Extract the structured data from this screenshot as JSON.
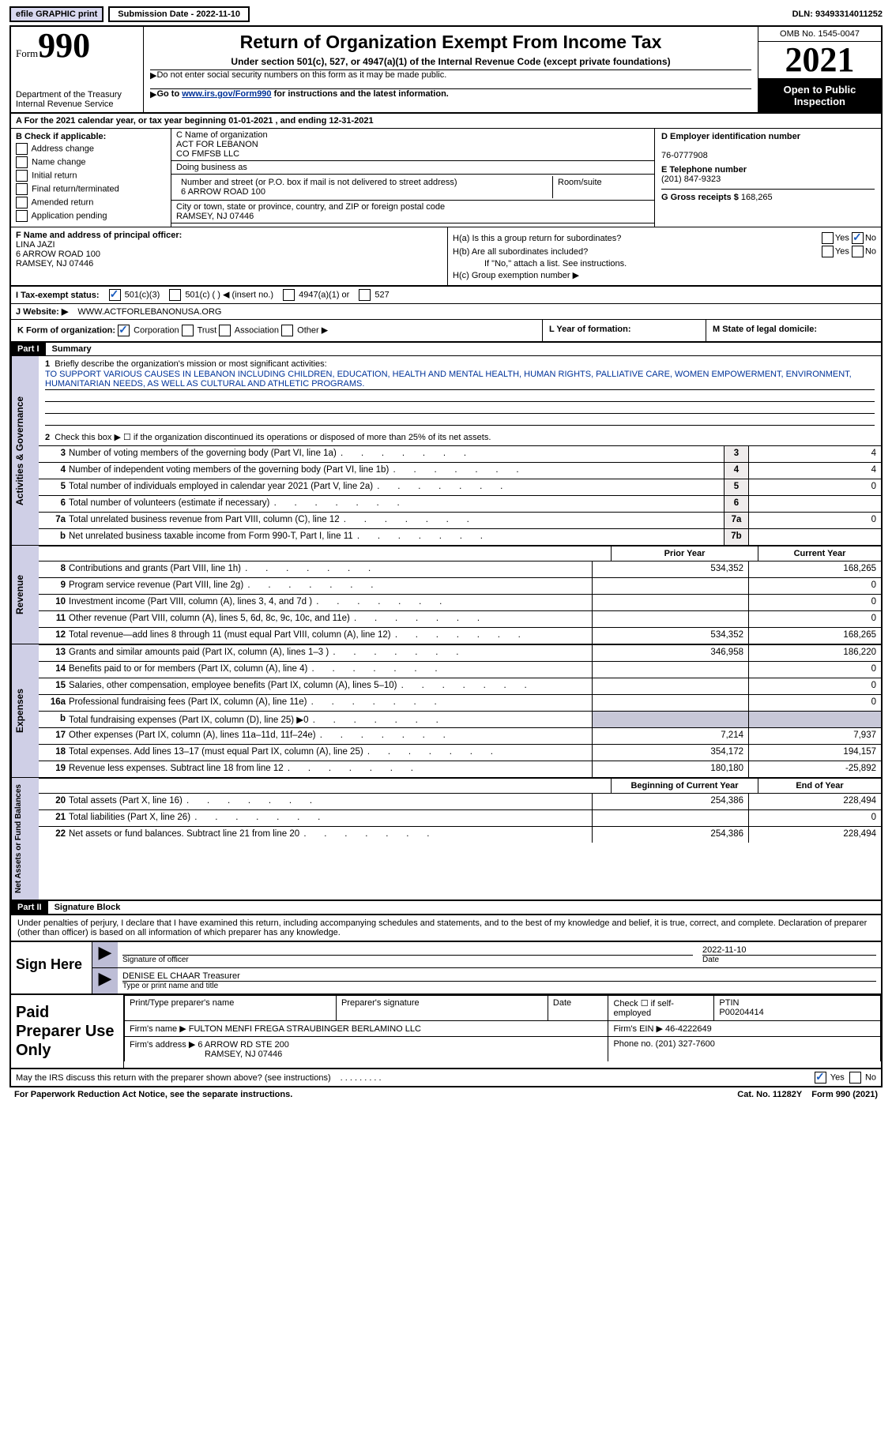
{
  "top": {
    "efile": "efile GRAPHIC print",
    "submission": "Submission Date - 2022-11-10",
    "dln": "DLN: 93493314011252"
  },
  "header": {
    "form": "Form",
    "num": "990",
    "title": "Return of Organization Exempt From Income Tax",
    "sub": "Under section 501(c), 527, or 4947(a)(1) of the Internal Revenue Code (except private foundations)",
    "line1": "Do not enter social security numbers on this form as it may be made public.",
    "line2a": "Go to ",
    "line2link": "www.irs.gov/Form990",
    "line2b": " for instructions and the latest information.",
    "dept": "Department of the Treasury Internal Revenue Service",
    "omb": "OMB No. 1545-0047",
    "year": "2021",
    "open": "Open to Public Inspection"
  },
  "rowA": "A For the 2021 calendar year, or tax year beginning 01-01-2021    , and ending 12-31-2021",
  "colB": {
    "title": "B Check if applicable:",
    "items": [
      "Address change",
      "Name change",
      "Initial return",
      "Final return/terminated",
      "Amended return",
      "Application pending"
    ]
  },
  "colC": {
    "c_lbl": "C Name of organization",
    "org1": "ACT FOR LEBANON",
    "org2": "CO FMFSB LLC",
    "dba_lbl": "Doing business as",
    "addr_lbl": "Number and street (or P.O. box if mail is not delivered to street address)",
    "room": "Room/suite",
    "addr": "6 ARROW ROAD 100",
    "city_lbl": "City or town, state or province, country, and ZIP or foreign postal code",
    "city": "RAMSEY, NJ  07446"
  },
  "colD": {
    "d_lbl": "D Employer identification number",
    "ein": "76-0777908",
    "e_lbl": "E Telephone number",
    "phone": "(201) 847-9323",
    "g_lbl": "G Gross receipts $ ",
    "gross": "168,265"
  },
  "rowF": {
    "lbl": "F Name and address of principal officer:",
    "name": "LINA JAZI",
    "addr1": "6 ARROW ROAD 100",
    "addr2": "RAMSEY, NJ  07446"
  },
  "rowH": {
    "ha": "H(a)  Is this a group return for subordinates?",
    "hb": "H(b)  Are all subordinates included?",
    "hbno": "If \"No,\" attach a list. See instructions.",
    "hc": "H(c)  Group exemption number ▶",
    "yes": "Yes",
    "no": "No"
  },
  "rowI": {
    "lbl": "I    Tax-exempt status:",
    "o1": "501(c)(3)",
    "o2": "501(c) (  ) ◀ (insert no.)",
    "o3": "4947(a)(1) or",
    "o4": "527"
  },
  "rowJ": {
    "lbl": "J   Website: ▶",
    "val": "WWW.ACTFORLEBANONUSA.ORG"
  },
  "rowK": "K Form of organization:",
  "rowK_opts": [
    "Corporation",
    "Trust",
    "Association",
    "Other ▶"
  ],
  "rowL": "L Year of formation:",
  "rowM": "M State of legal domicile:",
  "part1": {
    "bar": "Part I",
    "title": "Summary",
    "l1a": "Briefly describe the organization's mission or most significant activities:",
    "l1b": "TO SUPPORT VARIOUS CAUSES IN LEBANON INCLUDING CHILDREN, EDUCATION, HEALTH AND MENTAL HEALTH, HUMAN RIGHTS, PALLIATIVE CARE, WOMEN EMPOWERMENT, ENVIRONMENT, HUMANITARIAN NEEDS, AS WELL AS CULTURAL AND ATHLETIC PROGRAMS.",
    "l2": "Check this box ▶ ☐  if the organization discontinued its operations or disposed of more than 25% of its net assets.",
    "lines_ag": [
      {
        "n": "3",
        "t": "Number of voting members of the governing body (Part VI, line 1a)",
        "b": "3",
        "v": "4"
      },
      {
        "n": "4",
        "t": "Number of independent voting members of the governing body (Part VI, line 1b)",
        "b": "4",
        "v": "4"
      },
      {
        "n": "5",
        "t": "Total number of individuals employed in calendar year 2021 (Part V, line 2a)",
        "b": "5",
        "v": "0"
      },
      {
        "n": "6",
        "t": "Total number of volunteers (estimate if necessary)",
        "b": "6",
        "v": ""
      },
      {
        "n": "7a",
        "t": "Total unrelated business revenue from Part VIII, column (C), line 12",
        "b": "7a",
        "v": "0"
      },
      {
        "n": "b",
        "t": "Net unrelated business taxable income from Form 990-T, Part I, line 11",
        "b": "7b",
        "v": ""
      }
    ],
    "hdr_prior": "Prior Year",
    "hdr_curr": "Current Year",
    "rev": [
      {
        "n": "8",
        "t": "Contributions and grants (Part VIII, line 1h)",
        "p": "534,352",
        "c": "168,265"
      },
      {
        "n": "9",
        "t": "Program service revenue (Part VIII, line 2g)",
        "p": "",
        "c": "0"
      },
      {
        "n": "10",
        "t": "Investment income (Part VIII, column (A), lines 3, 4, and 7d )",
        "p": "",
        "c": "0"
      },
      {
        "n": "11",
        "t": "Other revenue (Part VIII, column (A), lines 5, 6d, 8c, 9c, 10c, and 11e)",
        "p": "",
        "c": "0"
      },
      {
        "n": "12",
        "t": "Total revenue—add lines 8 through 11 (must equal Part VIII, column (A), line 12)",
        "p": "534,352",
        "c": "168,265"
      }
    ],
    "exp": [
      {
        "n": "13",
        "t": "Grants and similar amounts paid (Part IX, column (A), lines 1–3 )",
        "p": "346,958",
        "c": "186,220"
      },
      {
        "n": "14",
        "t": "Benefits paid to or for members (Part IX, column (A), line 4)",
        "p": "",
        "c": "0"
      },
      {
        "n": "15",
        "t": "Salaries, other compensation, employee benefits (Part IX, column (A), lines 5–10)",
        "p": "",
        "c": "0"
      },
      {
        "n": "16a",
        "t": "Professional fundraising fees (Part IX, column (A), line 11e)",
        "p": "",
        "c": "0"
      },
      {
        "n": "b",
        "t": "Total fundraising expenses (Part IX, column (D), line 25) ▶0",
        "p": "shade",
        "c": "shade"
      },
      {
        "n": "17",
        "t": "Other expenses (Part IX, column (A), lines 11a–11d, 11f–24e)",
        "p": "7,214",
        "c": "7,937"
      },
      {
        "n": "18",
        "t": "Total expenses. Add lines 13–17 (must equal Part IX, column (A), line 25)",
        "p": "354,172",
        "c": "194,157"
      },
      {
        "n": "19",
        "t": "Revenue less expenses. Subtract line 18 from line 12",
        "p": "180,180",
        "c": "-25,892"
      }
    ],
    "hdr_beg": "Beginning of Current Year",
    "hdr_end": "End of Year",
    "bal": [
      {
        "n": "20",
        "t": "Total assets (Part X, line 16)",
        "p": "254,386",
        "c": "228,494"
      },
      {
        "n": "21",
        "t": "Total liabilities (Part X, line 26)",
        "p": "",
        "c": "0"
      },
      {
        "n": "22",
        "t": "Net assets or fund balances. Subtract line 21 from line 20",
        "p": "254,386",
        "c": "228,494"
      }
    ],
    "vtab_ag": "Activities & Governance",
    "vtab_rev": "Revenue",
    "vtab_exp": "Expenses",
    "vtab_bal": "Net Assets or Fund Balances"
  },
  "part2": {
    "bar": "Part II",
    "title": "Signature Block",
    "decl": "Under penalties of perjury, I declare that I have examined this return, including accompanying schedules and statements, and to the best of my knowledge and belief, it is true, correct, and complete. Declaration of preparer (other than officer) is based on all information of which preparer has any knowledge."
  },
  "sign": {
    "lbl": "Sign Here",
    "sig_lbl": "Signature of officer",
    "date": "2022-11-10",
    "date_lbl": "Date",
    "name": "DENISE EL CHAAR  Treasurer",
    "name_lbl": "Type or print name and title"
  },
  "prep": {
    "lbl": "Paid Preparer Use Only",
    "h1": "Print/Type preparer's name",
    "h2": "Preparer's signature",
    "h3": "Date",
    "h4a": "Check ☐ if self-employed",
    "h4b": "PTIN",
    "ptin": "P00204414",
    "firm_lbl": "Firm's name      ▶",
    "firm": "FULTON MENFI FREGA STRAUBINGER BERLAMINO LLC",
    "ein_lbl": "Firm's EIN ▶",
    "ein": "46-4222649",
    "addr_lbl": "Firm's address ▶",
    "addr1": "6 ARROW RD STE 200",
    "addr2": "RAMSEY, NJ  07446",
    "phone_lbl": "Phone no.",
    "phone": "(201) 327-7600"
  },
  "footer": {
    "q": "May the IRS discuss this return with the preparer shown above? (see instructions)",
    "yes": "Yes",
    "no": "No",
    "pra": "For Paperwork Reduction Act Notice, see the separate instructions.",
    "cat": "Cat. No. 11282Y",
    "form": "Form 990 (2021)"
  }
}
